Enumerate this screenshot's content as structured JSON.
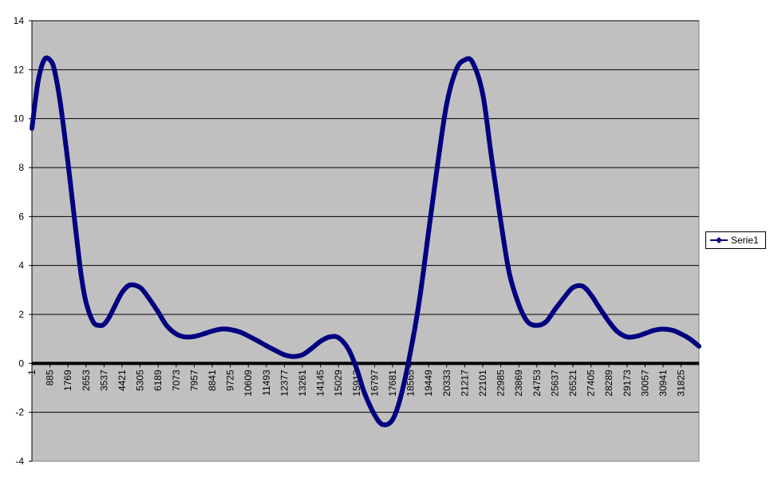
{
  "chart_data": {
    "type": "line",
    "title": "",
    "xlabel": "",
    "ylabel": "",
    "ylim": [
      -4,
      14
    ],
    "y_ticks": [
      "-4",
      "-2",
      "0",
      "2",
      "4",
      "6",
      "8",
      "10",
      "12",
      "14"
    ],
    "x_ticks": [
      "1",
      "885",
      "1769",
      "2653",
      "3537",
      "4421",
      "5305",
      "6189",
      "7073",
      "7957",
      "8841",
      "9725",
      "10609",
      "11493",
      "12377",
      "13261",
      "14145",
      "15029",
      "15913",
      "16797",
      "17681",
      "18565",
      "19449",
      "20333",
      "21217",
      "22101",
      "22985",
      "23869",
      "24753",
      "25637",
      "26521",
      "27405",
      "28289",
      "29173",
      "30057",
      "30941",
      "31825"
    ],
    "xlim": [
      1,
      32700
    ],
    "grid": "horizontal",
    "plot_background": "#c0c0c0",
    "legend_position": "right",
    "series": [
      {
        "name": "Serie1",
        "color": "#000080",
        "x": [
          1,
          300,
          600,
          885,
          1100,
          1400,
          1769,
          2100,
          2400,
          2653,
          3000,
          3300,
          3537,
          3800,
          4100,
          4421,
          4800,
          5305,
          5700,
          6189,
          6600,
          7073,
          7500,
          7957,
          8400,
          8841,
          9300,
          9725,
          10200,
          10609,
          11000,
          11493,
          12000,
          12377,
          12800,
          13261,
          13700,
          14145,
          14600,
          15029,
          15500,
          15913,
          16300,
          16797,
          17200,
          17681,
          18100,
          18565,
          19000,
          19449,
          19900,
          20333,
          20800,
          21217,
          21600,
          22101,
          22500,
          22985,
          23400,
          23869,
          24300,
          24753,
          25200,
          25637,
          26100,
          26521,
          27000,
          27405,
          27800,
          28289,
          28700,
          29173,
          29600,
          30057,
          30500,
          30941,
          31400,
          31825,
          32250,
          32700
        ],
        "y": [
          9.6,
          11.5,
          12.4,
          12.4,
          12.0,
          10.6,
          8.2,
          5.8,
          3.7,
          2.5,
          1.7,
          1.55,
          1.6,
          1.9,
          2.4,
          2.9,
          3.2,
          3.1,
          2.7,
          2.1,
          1.55,
          1.2,
          1.08,
          1.1,
          1.2,
          1.32,
          1.4,
          1.38,
          1.28,
          1.12,
          0.95,
          0.72,
          0.5,
          0.35,
          0.28,
          0.35,
          0.6,
          0.9,
          1.08,
          1.05,
          0.6,
          -0.2,
          -1.2,
          -2.1,
          -2.5,
          -2.3,
          -1.3,
          0.5,
          2.6,
          5.4,
          8.2,
          10.6,
          12.0,
          12.4,
          12.3,
          11.0,
          8.6,
          5.8,
          3.7,
          2.4,
          1.7,
          1.55,
          1.7,
          2.2,
          2.7,
          3.1,
          3.15,
          2.8,
          2.3,
          1.7,
          1.3,
          1.08,
          1.1,
          1.22,
          1.35,
          1.4,
          1.35,
          1.2,
          1.0,
          0.7
        ]
      }
    ]
  }
}
